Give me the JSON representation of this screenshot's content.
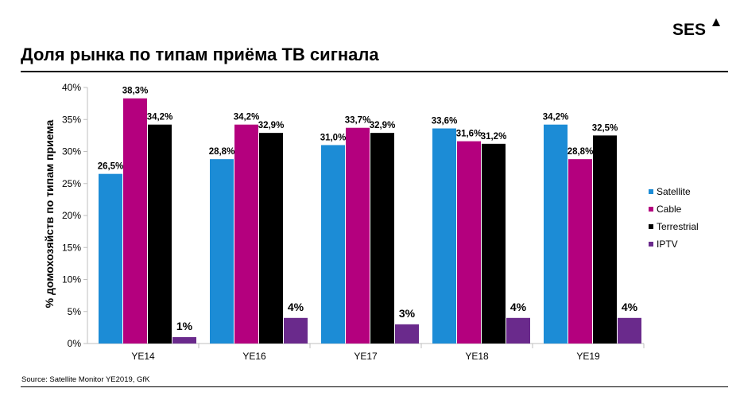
{
  "header": {
    "logo_text": "SES",
    "title": "Доля рынка по типам приёма ТВ сигнала"
  },
  "footer": {
    "source": "Source: Satellite Monitor YE2019, GfK"
  },
  "colors": {
    "Satellite": "#1c8cd6",
    "Cable": "#b4007e",
    "Terrestrial": "#000000",
    "IPTV": "#6a2a8c",
    "axis": "#bfbfbf"
  },
  "chart_data": {
    "type": "bar",
    "ylabel": "% домохозяйств по типам приема",
    "xlabel": "",
    "ylim": [
      0,
      40
    ],
    "yticks": [
      "0%",
      "5%",
      "10%",
      "15%",
      "20%",
      "25%",
      "30%",
      "35%",
      "40%"
    ],
    "categories": [
      "YE14",
      "YE16",
      "YE17",
      "YE18",
      "YE19"
    ],
    "legend_position": "right",
    "series": [
      {
        "name": "Satellite",
        "values": [
          26.5,
          28.8,
          31.0,
          33.6,
          34.2
        ],
        "labels": [
          "26,5%",
          "28,8%",
          "31,0%",
          "33,6%",
          "34,2%"
        ]
      },
      {
        "name": "Cable",
        "values": [
          38.3,
          34.2,
          33.7,
          31.6,
          28.8
        ],
        "labels": [
          "38,3%",
          "34,2%",
          "33,7%",
          "31,6%",
          "28,8%"
        ]
      },
      {
        "name": "Terrestrial",
        "values": [
          34.2,
          32.9,
          32.9,
          31.2,
          32.5
        ],
        "labels": [
          "34,2%",
          "32,9%",
          "32,9%",
          "31,2%",
          "32,5%"
        ]
      },
      {
        "name": "IPTV",
        "values": [
          1,
          4,
          3,
          4,
          4
        ],
        "labels": [
          "1%",
          "4%",
          "3%",
          "4%",
          "4%"
        ]
      }
    ]
  }
}
